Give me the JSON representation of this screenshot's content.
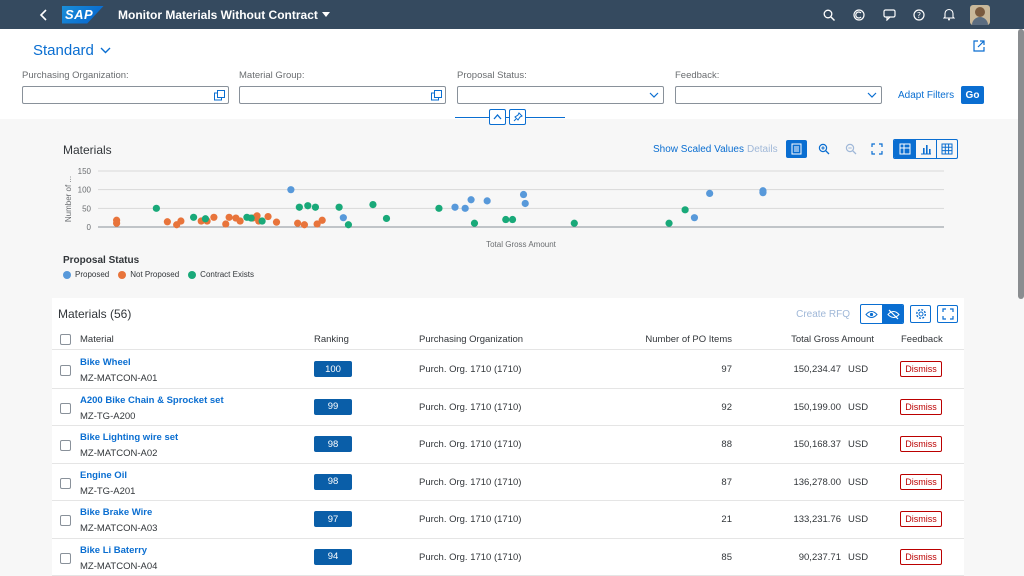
{
  "shell": {
    "logo": "SAP",
    "title": "Monitor Materials Without Contract",
    "icons": [
      "search-icon",
      "copilot-icon",
      "notifications-feed-icon",
      "help-icon",
      "bell-icon",
      "user-avatar"
    ]
  },
  "header": {
    "variant": "Standard",
    "filters": [
      {
        "label": "Purchasing Organization:",
        "value": "",
        "type": "value-help"
      },
      {
        "label": "Material Group:",
        "value": "",
        "type": "value-help"
      },
      {
        "label": "Proposal Status:",
        "value": "",
        "type": "select"
      },
      {
        "label": "Feedback:",
        "value": "",
        "type": "select"
      }
    ],
    "adapt_filters": "Adapt Filters",
    "go": "Go"
  },
  "chart": {
    "title": "Materials",
    "show_scaled": "Show Scaled Values",
    "details": "Details",
    "legend_title": "Proposal Status",
    "colors": {
      "Proposed": "#5899da",
      "Not Proposed": "#e8743b",
      "Contract Exists": "#19a979"
    }
  },
  "chart_data": {
    "type": "scatter",
    "xlabel": "Total Gross Amount",
    "ylabel": "Number of ...",
    "yticks": [
      "150",
      "100",
      "50",
      "0"
    ],
    "ylim": [
      0,
      150
    ],
    "xlim": [
      0,
      1000
    ],
    "series": [
      {
        "name": "Proposed",
        "points": [
          [
            228,
            100
          ],
          [
            290,
            25
          ],
          [
            422,
            53
          ],
          [
            434,
            50
          ],
          [
            441,
            73
          ],
          [
            460,
            70
          ],
          [
            503,
            87
          ],
          [
            505,
            63
          ],
          [
            705,
            25
          ],
          [
            723,
            90
          ],
          [
            786,
            97
          ],
          [
            786,
            92
          ]
        ]
      },
      {
        "name": "Not Proposed",
        "points": [
          [
            22,
            10
          ],
          [
            22,
            18
          ],
          [
            82,
            14
          ],
          [
            93,
            6
          ],
          [
            98,
            16
          ],
          [
            122,
            16
          ],
          [
            129,
            16
          ],
          [
            137,
            26
          ],
          [
            151,
            8
          ],
          [
            155,
            26
          ],
          [
            163,
            24
          ],
          [
            168,
            16
          ],
          [
            183,
            24
          ],
          [
            188,
            30
          ],
          [
            190,
            16
          ],
          [
            201,
            28
          ],
          [
            211,
            13
          ],
          [
            236,
            10
          ],
          [
            244,
            6
          ],
          [
            259,
            8
          ],
          [
            265,
            18
          ]
        ]
      },
      {
        "name": "Contract Exists",
        "points": [
          [
            69,
            50
          ],
          [
            113,
            26
          ],
          [
            127,
            22
          ],
          [
            176,
            26
          ],
          [
            181,
            24
          ],
          [
            194,
            16
          ],
          [
            238,
            53
          ],
          [
            248,
            57
          ],
          [
            257,
            53
          ],
          [
            285,
            53
          ],
          [
            296,
            6
          ],
          [
            325,
            60
          ],
          [
            341,
            23
          ],
          [
            403,
            50
          ],
          [
            445,
            10
          ],
          [
            482,
            20
          ],
          [
            490,
            20
          ],
          [
            563,
            10
          ],
          [
            675,
            10
          ],
          [
            694,
            46
          ]
        ]
      }
    ]
  },
  "table": {
    "title": "Materials (56)",
    "create_rfq": "Create RFQ",
    "columns": [
      "Material",
      "Ranking",
      "Purchasing Organization",
      "Number of PO Items",
      "Total Gross Amount",
      "Feedback"
    ],
    "rows": [
      {
        "name": "Bike Wheel",
        "id": "MZ-MATCON-A01",
        "ranking": "100",
        "org": "Purch. Org. 1710 (1710)",
        "po_items": "97",
        "amount": "150,234.47",
        "currency": "USD",
        "feedback": "Dismiss"
      },
      {
        "name": "A200 Bike Chain & Sprocket set",
        "id": "MZ-TG-A200",
        "ranking": "99",
        "org": "Purch. Org. 1710 (1710)",
        "po_items": "92",
        "amount": "150,199.00",
        "currency": "USD",
        "feedback": "Dismiss"
      },
      {
        "name": "Bike Lighting wire set",
        "id": "MZ-MATCON-A02",
        "ranking": "98",
        "org": "Purch. Org. 1710 (1710)",
        "po_items": "88",
        "amount": "150,168.37",
        "currency": "USD",
        "feedback": "Dismiss"
      },
      {
        "name": "Engine Oil",
        "id": "MZ-TG-A201",
        "ranking": "98",
        "org": "Purch. Org. 1710 (1710)",
        "po_items": "87",
        "amount": "136,278.00",
        "currency": "USD",
        "feedback": "Dismiss"
      },
      {
        "name": "Bike Brake Wire",
        "id": "MZ-MATCON-A03",
        "ranking": "97",
        "org": "Purch. Org. 1710 (1710)",
        "po_items": "21",
        "amount": "133,231.76",
        "currency": "USD",
        "feedback": "Dismiss"
      },
      {
        "name": "Bike Li Baterry",
        "id": "MZ-MATCON-A04",
        "ranking": "94",
        "org": "Purch. Org. 1710 (1710)",
        "po_items": "85",
        "amount": "90,237.71",
        "currency": "USD",
        "feedback": "Dismiss"
      }
    ]
  }
}
